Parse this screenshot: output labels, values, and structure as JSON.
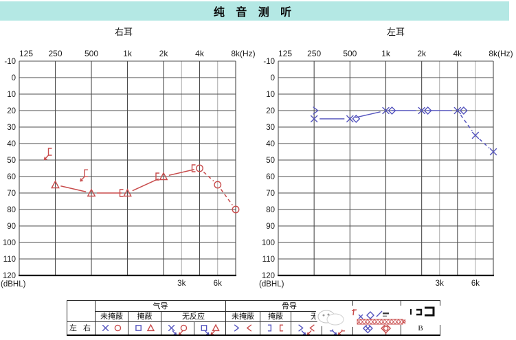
{
  "title": "纯 音 测 听",
  "panels": {
    "right_ear_label": "右耳",
    "left_ear_label": "左耳"
  },
  "axes": {
    "freq_ticks": [
      "125",
      "250",
      "500",
      "1k",
      "2k",
      "4k",
      "8k(Hz)"
    ],
    "freq_values": [
      125,
      250,
      500,
      1000,
      2000,
      4000,
      8000
    ],
    "inter_octave_ticks": [
      {
        "label": "3k",
        "freq": 3000
      },
      {
        "label": "6k",
        "freq": 6000
      }
    ],
    "db_ticks": [
      "-10",
      "0",
      "10",
      "20",
      "30",
      "40",
      "50",
      "60",
      "70",
      "80",
      "90",
      "100",
      "110",
      "120"
    ],
    "db_min": -10,
    "db_max": 120,
    "db_step": 10,
    "db_unit_label": "(dBHL)",
    "grid": true
  },
  "chart_data": [
    {
      "type": "line",
      "title": "右耳",
      "ear": "right",
      "color_key": "red",
      "xlabel": "Hz",
      "ylabel": "dBHL",
      "ylim": [
        -10,
        120
      ],
      "line_dashed_from_hz": 4000,
      "series": [
        {
          "name": "air-conduction-masked-triangle",
          "glyph": "triangle",
          "in_line": true,
          "points": [
            [
              250,
              65
            ],
            [
              500,
              70
            ],
            [
              1000,
              70
            ],
            [
              2000,
              60
            ]
          ]
        },
        {
          "name": "air-conduction-unmasked-circle",
          "glyph": "circle",
          "in_line": true,
          "points": [
            [
              4000,
              55
            ],
            [
              6000,
              65
            ],
            [
              8000,
              80
            ]
          ]
        },
        {
          "name": "bone-conduction-masked-bracket",
          "glyph": "brkL",
          "dx": -9,
          "points": [
            [
              1000,
              70
            ],
            [
              2000,
              60
            ],
            [
              4000,
              55
            ]
          ]
        },
        {
          "name": "bone-conduction-masked-bracket-no-response",
          "glyph": "brkL",
          "dx": -8,
          "arrow": "dl",
          "points": [
            [
              250,
              45
            ],
            [
              500,
              58
            ]
          ]
        }
      ]
    },
    {
      "type": "line",
      "title": "左耳",
      "ear": "left",
      "color_key": "blue",
      "xlabel": "Hz",
      "ylabel": "dBHL",
      "ylim": [
        -10,
        120
      ],
      "line_dashed_from_hz": 4000,
      "series": [
        {
          "name": "air-conduction-unmasked-x",
          "glyph": "x",
          "in_line": true,
          "points": [
            [
              250,
              25
            ],
            [
              500,
              25
            ],
            [
              1000,
              20
            ],
            [
              2000,
              20
            ],
            [
              4000,
              20
            ],
            [
              6000,
              35
            ],
            [
              8000,
              45
            ]
          ]
        },
        {
          "name": "bone-conduction-unmasked-chevron",
          "glyph": "chevR",
          "dx": 2,
          "points": [
            [
              250,
              20
            ]
          ]
        },
        {
          "name": "diamond-markers",
          "glyph": "diamond",
          "dx": 9,
          "points": [
            [
              500,
              25
            ],
            [
              1000,
              20
            ],
            [
              2000,
              20
            ],
            [
              4000,
              20
            ]
          ]
        }
      ]
    }
  ],
  "legend_table": {
    "corner": "",
    "row_header": "左 右",
    "air_group_label": "气导",
    "bone_group_label": "骨导",
    "sub_headers": [
      "未掩蔽",
      "掩蔽",
      "无反应",
      "未掩蔽",
      "掩蔽",
      "无反应"
    ],
    "extra_header": "",
    "last_header": "",
    "last_cell_text": "B",
    "symbol_cells": [
      {
        "name": "air-unmasked",
        "glyphs": [
          {
            "g": "x",
            "c": "blue"
          },
          {
            "g": "circle",
            "c": "red"
          }
        ]
      },
      {
        "name": "air-masked",
        "glyphs": [
          {
            "g": "square",
            "c": "blue"
          },
          {
            "g": "triangle",
            "c": "red"
          }
        ]
      },
      {
        "name": "air-no-response-1",
        "glyphs": [
          {
            "g": "x",
            "c": "blue",
            "a": "dr"
          },
          {
            "g": "circle",
            "c": "red",
            "a": "dl"
          }
        ]
      },
      {
        "name": "air-no-response-2",
        "glyphs": [
          {
            "g": "square",
            "c": "blue",
            "a": "dr"
          },
          {
            "g": "triangle",
            "c": "red",
            "a": "dl"
          }
        ]
      },
      {
        "name": "bone-unmasked",
        "glyphs": [
          {
            "g": "chevR",
            "c": "blue"
          },
          {
            "g": "chevL",
            "c": "red"
          }
        ]
      },
      {
        "name": "bone-masked",
        "glyphs": [
          {
            "g": "brkR",
            "c": "blue"
          },
          {
            "g": "brkL",
            "c": "red"
          }
        ]
      },
      {
        "name": "bone-no-response-1",
        "glyphs": [
          {
            "g": "chevR",
            "c": "blue",
            "a": "dr"
          },
          {
            "g": "chevL",
            "c": "red",
            "a": "dl"
          }
        ]
      },
      {
        "name": "bone-no-response-2",
        "glyphs": [
          {
            "g": "brkR",
            "c": "blue",
            "a": "dr"
          },
          {
            "g": "brkL",
            "c": "red",
            "a": "dl"
          }
        ]
      },
      {
        "name": "diamond-symbols",
        "glyphs": [
          {
            "g": "diamondX",
            "c": "blue"
          },
          {
            "g": "diamondO",
            "c": "red"
          }
        ]
      }
    ]
  },
  "watermark": {
    "description": "white logo watermark, text illegible"
  },
  "colors": {
    "title_bg": "#b4e8e4",
    "red": "#c84c4c",
    "blue": "#5555be",
    "grid_major": "#4c4c4c",
    "grid_minor": "#a9a9a9",
    "grid_bottom": "#000000",
    "axis_text": "#1a1a1a"
  }
}
